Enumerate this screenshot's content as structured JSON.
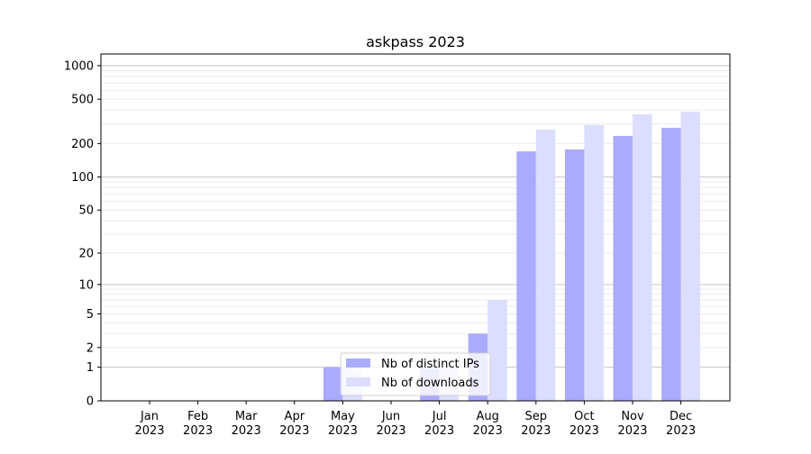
{
  "chart_data": {
    "type": "bar",
    "title": "askpass 2023",
    "xlabel": "",
    "ylabel": "",
    "yscale": "log(1+y)",
    "ylim": [
      0,
      1270
    ],
    "grid": true,
    "legend_position": "lower-center",
    "categories": [
      "Jan\n2023",
      "Feb\n2023",
      "Mar\n2023",
      "Apr\n2023",
      "May\n2023",
      "Jun\n2023",
      "Jul\n2023",
      "Aug\n2023",
      "Sep\n2023",
      "Oct\n2023",
      "Nov\n2023",
      "Dec\n2023"
    ],
    "yticks": [
      0,
      1,
      2,
      5,
      10,
      20,
      50,
      100,
      200,
      500,
      1000
    ],
    "series": [
      {
        "name": "Nb of distinct IPs",
        "color": "#aaaaff",
        "values": [
          0,
          0,
          0,
          0,
          1,
          0,
          1,
          3,
          170,
          177,
          234,
          277
        ]
      },
      {
        "name": "Nb of downloads",
        "color": "#ddddff",
        "values": [
          0,
          0,
          0,
          0,
          1,
          0,
          1,
          7,
          267,
          293,
          366,
          387
        ]
      }
    ]
  }
}
